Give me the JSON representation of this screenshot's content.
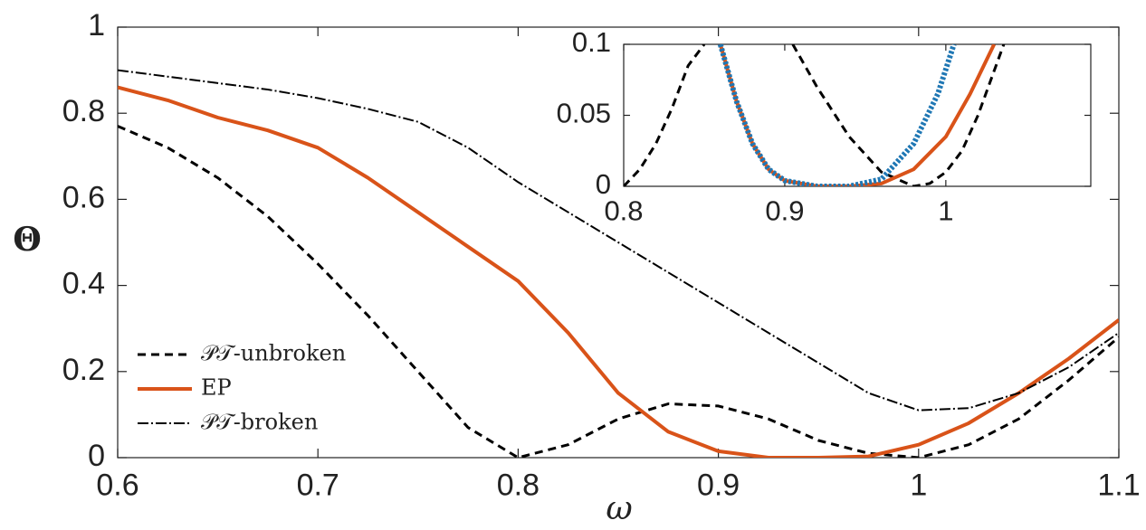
{
  "chart_data": [
    {
      "type": "line",
      "xlabel": "ω",
      "ylabel": "Θ",
      "x": [
        0.6,
        0.625,
        0.65,
        0.675,
        0.7,
        0.725,
        0.75,
        0.775,
        0.8,
        0.825,
        0.85,
        0.875,
        0.9,
        0.925,
        0.95,
        0.975,
        1.0,
        1.025,
        1.05,
        1.075,
        1.1
      ],
      "series": [
        {
          "name": "𝒫𝒯-unbroken",
          "color": "#000000",
          "dash": "dashed",
          "values": [
            0.77,
            0.72,
            0.65,
            0.56,
            0.45,
            0.33,
            0.2,
            0.07,
            0,
            0.03,
            0.09,
            0.125,
            0.12,
            0.09,
            0.04,
            0.01,
            0,
            0.03,
            0.09,
            0.18,
            0.28
          ]
        },
        {
          "name": "EP",
          "color": "#d95319",
          "dash": "solid",
          "values": [
            0.86,
            0.83,
            0.79,
            0.76,
            0.72,
            0.65,
            0.57,
            0.49,
            0.41,
            0.29,
            0.15,
            0.06,
            0.015,
            0,
            0,
            0.003,
            0.03,
            0.08,
            0.15,
            0.23,
            0.32
          ]
        },
        {
          "name": "𝒫𝒯-broken",
          "color": "#000000",
          "dash": "dashdot",
          "values": [
            0.9,
            0.885,
            0.87,
            0.855,
            0.835,
            0.81,
            0.78,
            0.72,
            0.64,
            0.57,
            0.5,
            0.43,
            0.36,
            0.29,
            0.22,
            0.15,
            0.11,
            0.115,
            0.15,
            0.21,
            0.29
          ]
        }
      ],
      "xlim": [
        0.6,
        1.1
      ],
      "ylim": [
        0,
        1
      ],
      "xticks": [
        0.6,
        0.7,
        0.8,
        0.9,
        1,
        1.1
      ],
      "yticks": [
        0,
        0.2,
        0.4,
        0.6,
        0.8,
        1
      ],
      "legend": "lower left"
    },
    {
      "type": "line",
      "series": [
        {
          "color": "#000000",
          "dash": "dashed",
          "x": [
            0.8,
            0.81,
            0.82,
            0.83,
            0.84,
            0.85,
            0.875,
            0.905,
            0.92,
            0.94,
            0.96,
            0.98,
            0.99,
            1.0,
            1.01,
            1.02,
            1.036
          ],
          "values": [
            0,
            0.012,
            0.03,
            0.055,
            0.085,
            0.1,
            null,
            0.1,
            0.07,
            0.035,
            0.01,
            0,
            0.002,
            0.01,
            0.025,
            0.05,
            0.1
          ]
        },
        {
          "color": "#d95319",
          "dash": "solid",
          "x": [
            0.86,
            0.87,
            0.88,
            0.89,
            0.9,
            0.92,
            0.94,
            0.96,
            0.98,
            1.0,
            1.015,
            1.03
          ],
          "values": [
            0.1,
            0.06,
            0.03,
            0.012,
            0.004,
            0,
            0,
            0.002,
            0.012,
            0.035,
            0.065,
            0.1
          ]
        },
        {
          "color": "#1f77b4",
          "dash": "dotted",
          "x": [
            0.86,
            0.87,
            0.88,
            0.89,
            0.9,
            0.92,
            0.94,
            0.96,
            0.98,
            0.995,
            1.005
          ],
          "values": [
            0.1,
            0.06,
            0.03,
            0.012,
            0.004,
            0,
            0,
            0.005,
            0.03,
            0.065,
            0.1
          ]
        }
      ],
      "xlim": [
        0.8,
        1.09
      ],
      "ylim": [
        0,
        0.1
      ],
      "xticks": [
        0.8,
        0.9,
        1
      ],
      "yticks": [
        0,
        0.05,
        0.1
      ]
    }
  ]
}
